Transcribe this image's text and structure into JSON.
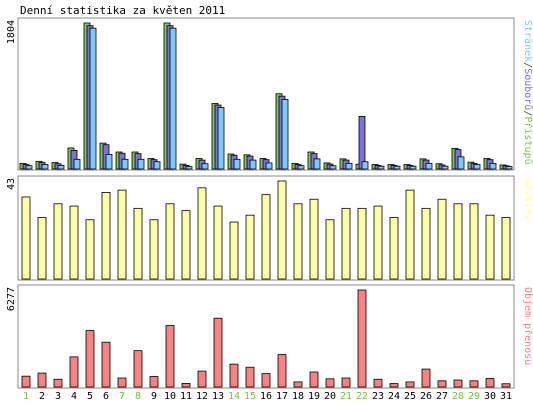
{
  "title": "Denní statistika za květen 2011",
  "colors": {
    "access": "#84c060",
    "files": "#7b72dc",
    "pages": "#7ec8fe",
    "visits": "#fefea8",
    "traffic": "#f68282",
    "weekend_label": "#7bc047",
    "weekday_label": "#000000",
    "outline": "#000000",
    "frame": "#888888"
  },
  "chart_data": [
    {
      "type": "bar",
      "panel": "requests",
      "ymax_label": "1804",
      "legend": [
        {
          "name": "Stránek",
          "color": "#7ec8fe"
        },
        {
          "name": "/",
          "color": "#444444"
        },
        {
          "name": "Souborů",
          "color": "#7b72dc"
        },
        {
          "name": "/",
          "color": "#444444"
        },
        {
          "name": "Přístupů",
          "color": "#84c060"
        }
      ],
      "ylim": [
        0,
        1804
      ],
      "categories": [
        "1",
        "2",
        "3",
        "4",
        "5",
        "6",
        "7",
        "8",
        "9",
        "10",
        "11",
        "12",
        "13",
        "14",
        "15",
        "16",
        "17",
        "18",
        "19",
        "20",
        "21",
        "22",
        "23",
        "24",
        "25",
        "26",
        "27",
        "28",
        "29",
        "30",
        "31"
      ],
      "series": [
        {
          "name": "Přístupů",
          "values": [
            70,
            95,
            80,
            260,
            1804,
            320,
            210,
            210,
            130,
            1804,
            60,
            130,
            810,
            185,
            175,
            130,
            930,
            70,
            210,
            75,
            125,
            60,
            55,
            55,
            55,
            125,
            65,
            255,
            85,
            130,
            50
          ]
        },
        {
          "name": "Souborů",
          "values": [
            55,
            80,
            65,
            230,
            1770,
            300,
            195,
            190,
            115,
            1770,
            45,
            110,
            790,
            170,
            160,
            115,
            900,
            55,
            190,
            60,
            110,
            650,
            45,
            45,
            45,
            110,
            50,
            240,
            70,
            115,
            40
          ]
        },
        {
          "name": "Stránek",
          "values": [
            40,
            55,
            45,
            120,
            1740,
            180,
            120,
            120,
            90,
            1740,
            30,
            65,
            760,
            120,
            110,
            75,
            860,
            40,
            125,
            40,
            70,
            90,
            35,
            35,
            35,
            70,
            35,
            150,
            55,
            70,
            30
          ]
        }
      ]
    },
    {
      "type": "bar",
      "panel": "visits",
      "ymax_label": "43",
      "legend": [
        {
          "name": "Návštěv",
          "color": "#fefea8"
        }
      ],
      "ylim": [
        0,
        43
      ],
      "categories": [
        "1",
        "2",
        "3",
        "4",
        "5",
        "6",
        "7",
        "8",
        "9",
        "10",
        "11",
        "12",
        "13",
        "14",
        "15",
        "16",
        "17",
        "18",
        "19",
        "20",
        "21",
        "22",
        "23",
        "24",
        "25",
        "26",
        "27",
        "28",
        "29",
        "30",
        "31"
      ],
      "series": [
        {
          "name": "Návštěv",
          "values": [
            36,
            27,
            33,
            32,
            26,
            38,
            39,
            31,
            26,
            33,
            30,
            40,
            32,
            25,
            28,
            37,
            43,
            33,
            35,
            26,
            31,
            31,
            32,
            27,
            39,
            31,
            35,
            33,
            33,
            28,
            27
          ]
        }
      ]
    },
    {
      "type": "bar",
      "panel": "traffic",
      "ymax_label": "6277",
      "legend": [
        {
          "name": "Objem přenosu",
          "color": "#f68282"
        }
      ],
      "ylim": [
        0,
        6277
      ],
      "categories": [
        "1",
        "2",
        "3",
        "4",
        "5",
        "6",
        "7",
        "8",
        "9",
        "10",
        "11",
        "12",
        "13",
        "14",
        "15",
        "16",
        "17",
        "18",
        "19",
        "20",
        "21",
        "22",
        "23",
        "24",
        "25",
        "26",
        "27",
        "28",
        "29",
        "30",
        "31"
      ],
      "series": [
        {
          "name": "Objem přenosu",
          "values": [
            700,
            900,
            500,
            1950,
            3650,
            2900,
            580,
            2350,
            680,
            3980,
            230,
            1030,
            4450,
            1480,
            1280,
            870,
            2100,
            330,
            970,
            530,
            580,
            6277,
            500,
            220,
            330,
            1160,
            400,
            450,
            400,
            550,
            210
          ]
        }
      ]
    }
  ],
  "weekend_days": [
    1,
    7,
    8,
    14,
    15,
    21,
    22,
    28,
    29
  ]
}
